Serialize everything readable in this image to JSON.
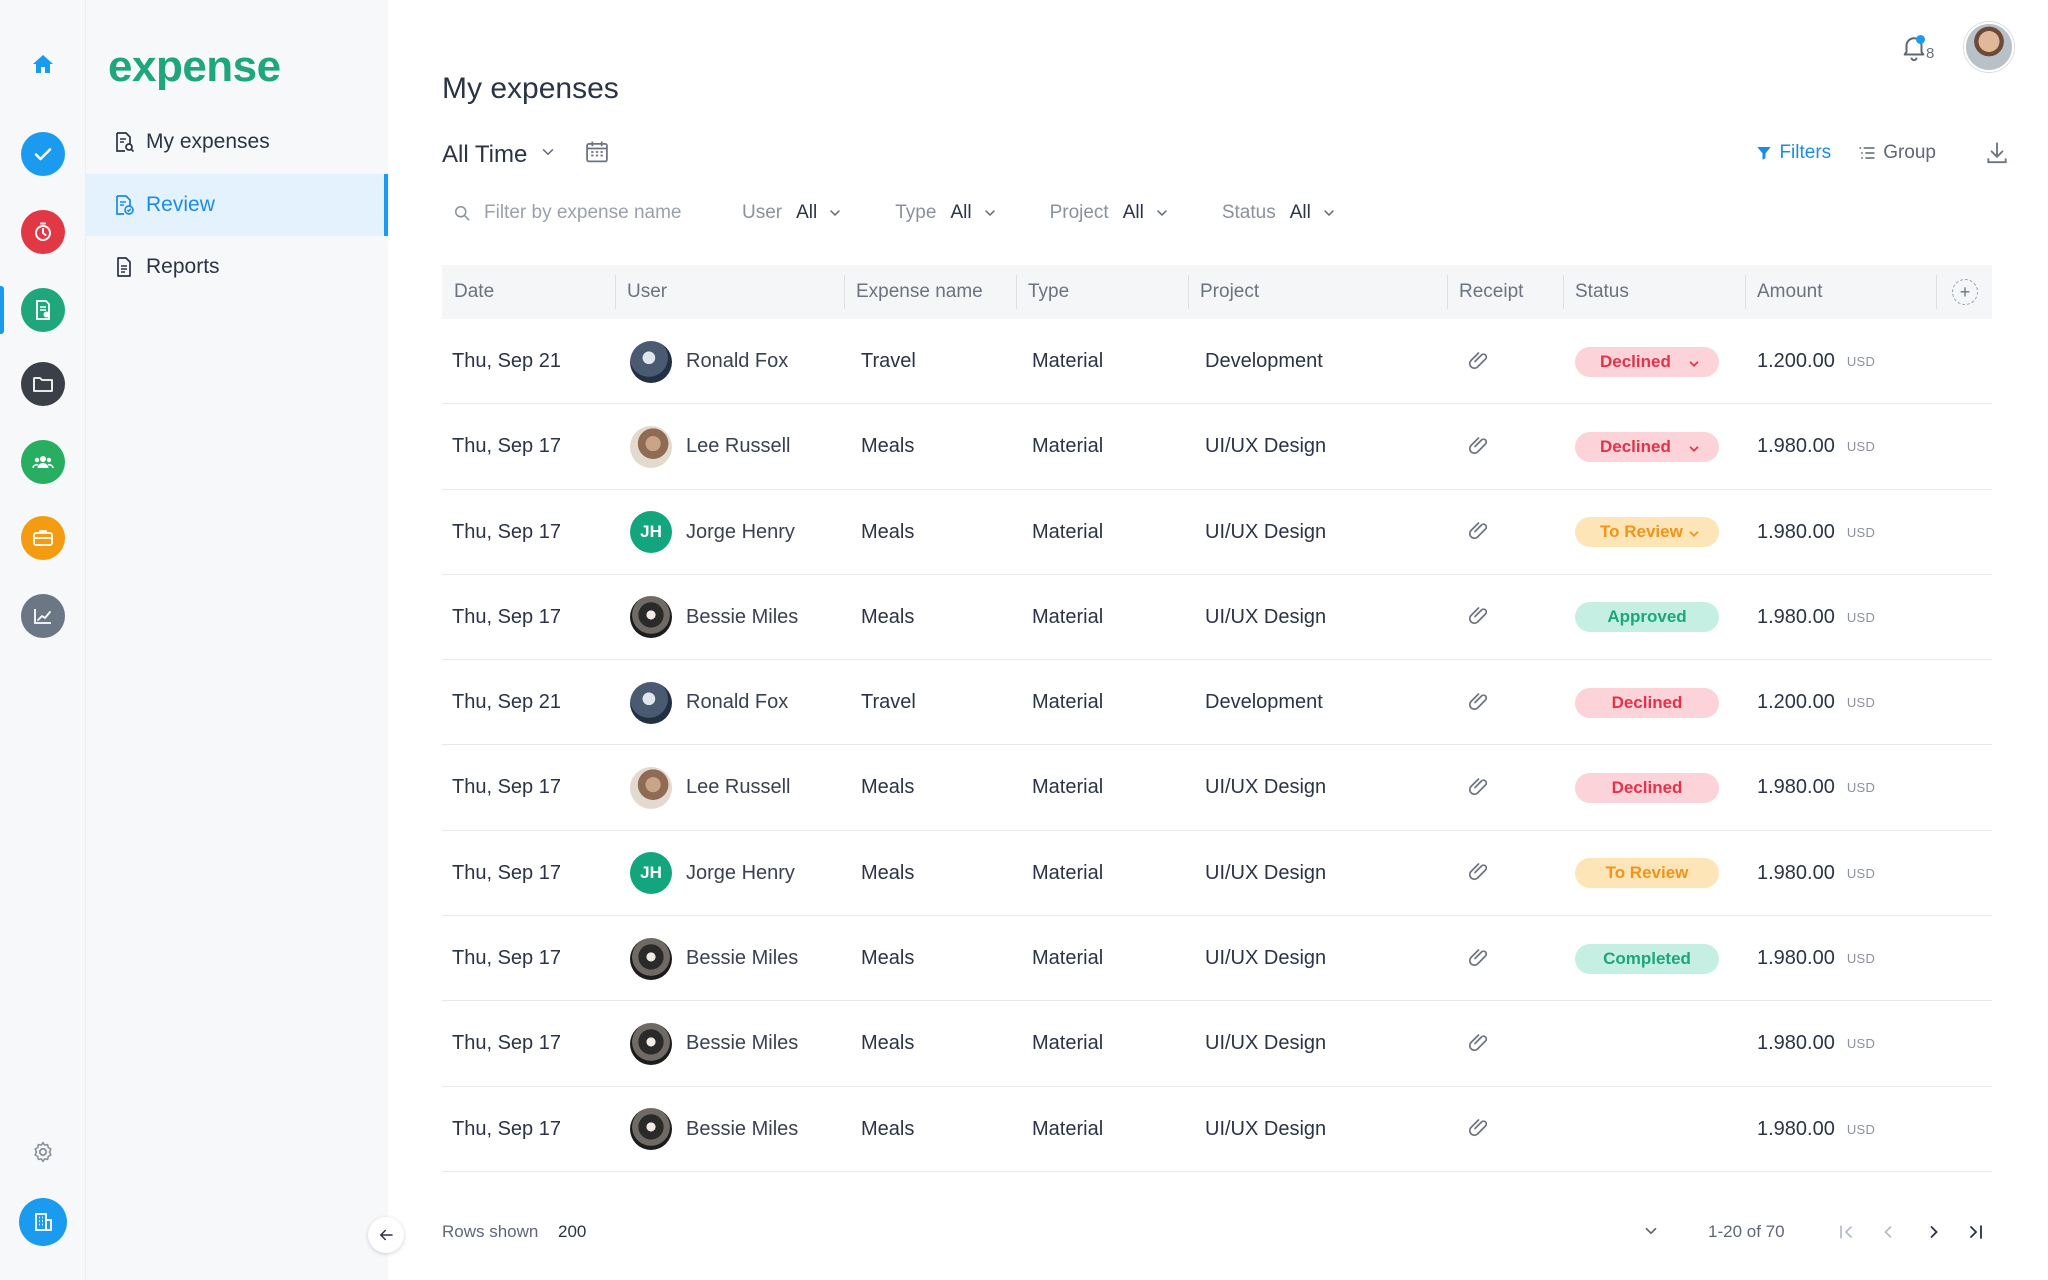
{
  "app": {
    "logo": "expense"
  },
  "rail": {
    "items": [
      {
        "icon": "home-icon",
        "color": "#1b9bf0"
      },
      {
        "icon": "check-icon",
        "color": "#1b9bf0"
      },
      {
        "icon": "stopwatch-icon",
        "color": "#e23744"
      },
      {
        "icon": "expense-doc-icon",
        "color": "#1fa67a"
      },
      {
        "icon": "folder-icon",
        "color": "#3b3f48"
      },
      {
        "icon": "team-icon",
        "color": "#27ae60"
      },
      {
        "icon": "briefcase-icon",
        "color": "#f39c12"
      },
      {
        "icon": "analytics-icon",
        "color": "#6b7785"
      },
      {
        "icon": "settings-icon",
        "color": "#8a919c"
      },
      {
        "icon": "building-icon",
        "color": "#1b9bf0"
      }
    ]
  },
  "nav": {
    "items": [
      {
        "label": "My expenses"
      },
      {
        "label": "Review"
      },
      {
        "label": "Reports"
      }
    ]
  },
  "header": {
    "title": "My expenses",
    "notifications": "8"
  },
  "time_filter": {
    "label": "All Time"
  },
  "toolbar": {
    "filters_label": "Filters",
    "group_label": "Group"
  },
  "filters": {
    "search_placeholder": "Filter by expense name",
    "user": {
      "label": "User",
      "value": "All"
    },
    "type": {
      "label": "Type",
      "value": "All"
    },
    "project": {
      "label": "Project",
      "value": "All"
    },
    "status": {
      "label": "Status",
      "value": "All"
    }
  },
  "table": {
    "columns": [
      "Date",
      "User",
      "Expense name",
      "Type",
      "Project",
      "Receipt",
      "Status",
      "Amount"
    ],
    "rows": [
      {
        "date": "Thu, Sep 21",
        "user": "Ronald Fox",
        "avatar": "ronald",
        "name": "Travel",
        "type": "Material",
        "project": "Development",
        "status": "Declined",
        "status_kind": "declined",
        "dropdown": true,
        "amount": "1.200.00",
        "currency": "USD"
      },
      {
        "date": "Thu, Sep 17",
        "user": "Lee Russell",
        "avatar": "lee",
        "name": "Meals",
        "type": "Material",
        "project": "UI/UX Design",
        "status": "Declined",
        "status_kind": "declined",
        "dropdown": true,
        "amount": "1.980.00",
        "currency": "USD"
      },
      {
        "date": "Thu, Sep 17",
        "user": "Jorge Henry",
        "avatar": "jh",
        "initials": "JH",
        "name": "Meals",
        "type": "Material",
        "project": "UI/UX Design",
        "status": "To Review",
        "status_kind": "review",
        "dropdown": true,
        "amount": "1.980.00",
        "currency": "USD"
      },
      {
        "date": "Thu, Sep 17",
        "user": "Bessie Miles",
        "avatar": "bessie",
        "name": "Meals",
        "type": "Material",
        "project": "UI/UX Design",
        "status": "Approved",
        "status_kind": "approved",
        "dropdown": false,
        "amount": "1.980.00",
        "currency": "USD"
      },
      {
        "date": "Thu, Sep 21",
        "user": "Ronald Fox",
        "avatar": "ronald",
        "name": "Travel",
        "type": "Material",
        "project": "Development",
        "status": "Declined",
        "status_kind": "declined",
        "dropdown": false,
        "amount": "1.200.00",
        "currency": "USD"
      },
      {
        "date": "Thu, Sep 17",
        "user": "Lee Russell",
        "avatar": "lee",
        "name": "Meals",
        "type": "Material",
        "project": "UI/UX Design",
        "status": "Declined",
        "status_kind": "declined",
        "dropdown": false,
        "amount": "1.980.00",
        "currency": "USD"
      },
      {
        "date": "Thu, Sep 17",
        "user": "Jorge Henry",
        "avatar": "jh",
        "initials": "JH",
        "name": "Meals",
        "type": "Material",
        "project": "UI/UX Design",
        "status": "To Review",
        "status_kind": "review",
        "dropdown": false,
        "amount": "1.980.00",
        "currency": "USD"
      },
      {
        "date": "Thu, Sep 17",
        "user": "Bessie Miles",
        "avatar": "bessie",
        "name": "Meals",
        "type": "Material",
        "project": "UI/UX Design",
        "status": "Completed",
        "status_kind": "approved",
        "dropdown": false,
        "amount": "1.980.00",
        "currency": "USD"
      },
      {
        "date": "Thu, Sep 17",
        "user": "Bessie Miles",
        "avatar": "bessie",
        "name": "Meals",
        "type": "Material",
        "project": "UI/UX Design",
        "status": "",
        "status_kind": "",
        "dropdown": false,
        "amount": "1.980.00",
        "currency": "USD"
      },
      {
        "date": "Thu, Sep 17",
        "user": "Bessie Miles",
        "avatar": "bessie",
        "name": "Meals",
        "type": "Material",
        "project": "UI/UX Design",
        "status": "",
        "status_kind": "",
        "dropdown": false,
        "amount": "1.980.00",
        "currency": "USD"
      }
    ]
  },
  "footer": {
    "rows_label": "Rows shown",
    "rows_value": "200",
    "range": "1-20 of 70"
  }
}
